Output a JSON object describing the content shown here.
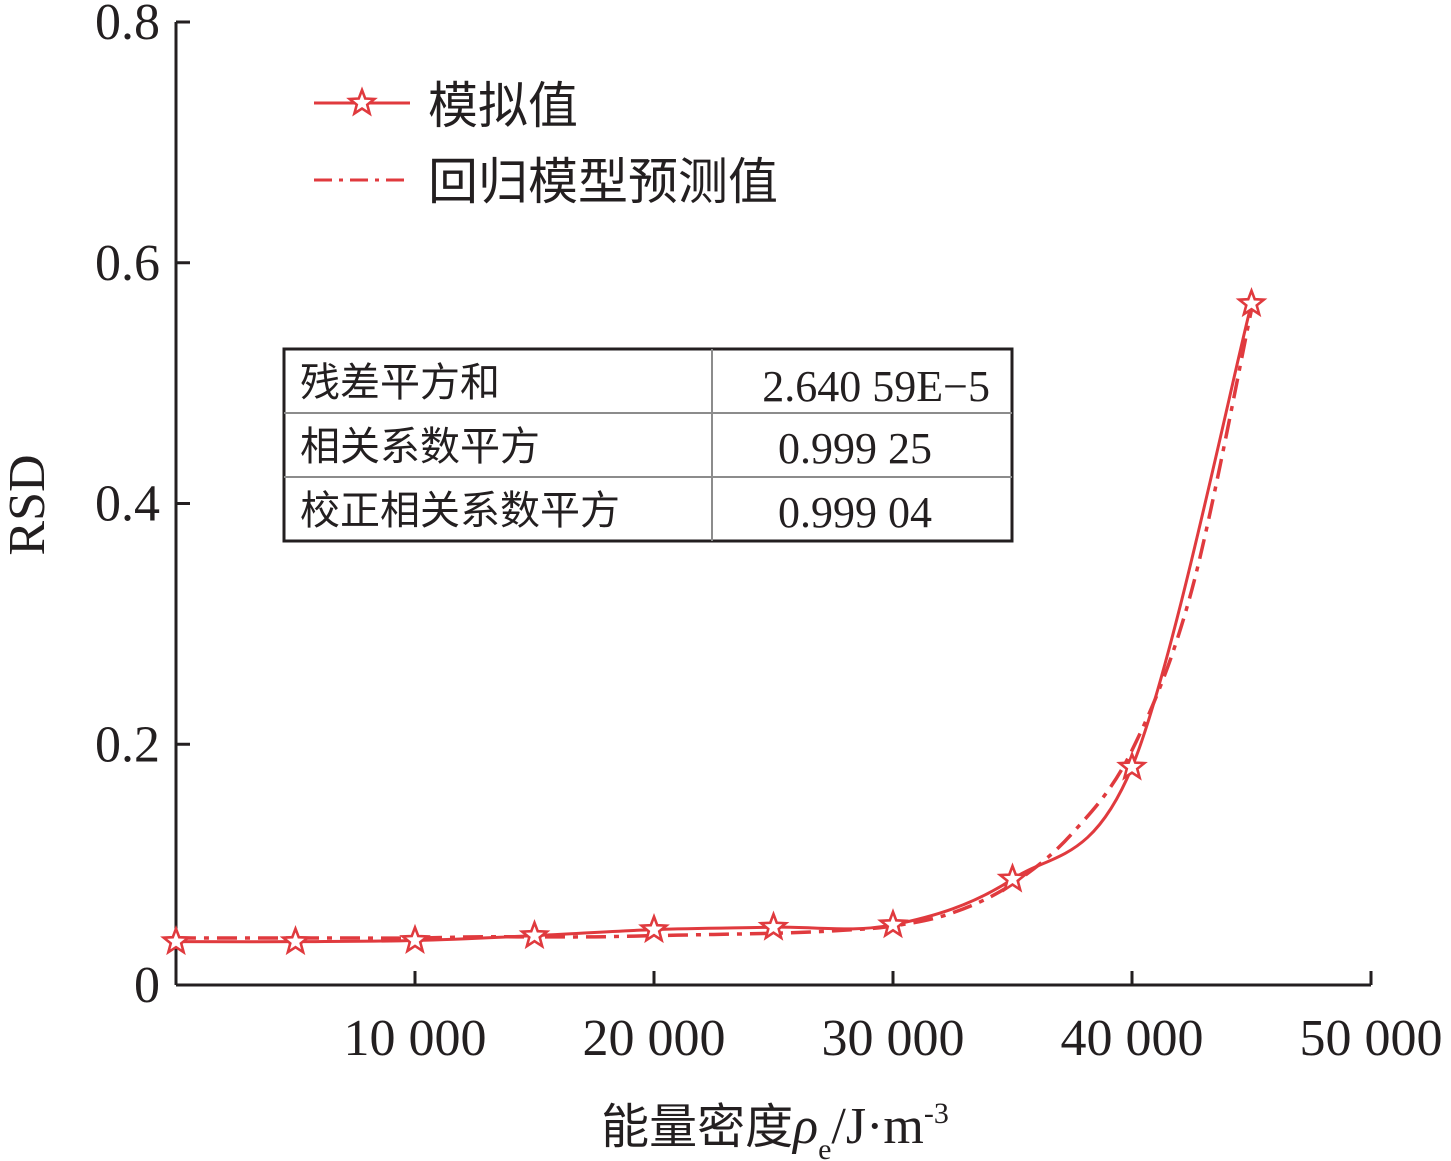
{
  "chart_data": {
    "type": "line",
    "xlabel_prefix": "能量密度",
    "xlabel_symbol": "ρ",
    "xlabel_subscript": "e",
    "xlabel_unit": "/J·m",
    "xlabel_exponent": "-3",
    "ylabel": "RSD",
    "xlim": [
      0,
      50000
    ],
    "ylim": [
      0,
      0.8
    ],
    "x_ticks": [
      10000,
      20000,
      30000,
      40000,
      50000
    ],
    "x_tick_labels": [
      "10 000",
      "20 000",
      "30 000",
      "40 000",
      "50 000"
    ],
    "y_ticks": [
      0,
      0.2,
      0.4,
      0.6,
      0.8
    ],
    "y_tick_labels": [
      "0",
      "0.2",
      "0.4",
      "0.6",
      "0.8"
    ],
    "grid": false,
    "legend_position": "top-left",
    "series": [
      {
        "name": "模拟值",
        "style": "solid-star",
        "color": "#e03a3e",
        "x": [
          0,
          5000,
          10000,
          15000,
          20000,
          25000,
          30000,
          35000,
          40000,
          45000
        ],
        "y": [
          0.036,
          0.036,
          0.037,
          0.041,
          0.046,
          0.048,
          0.05,
          0.088,
          0.181,
          0.566
        ]
      },
      {
        "name": "回归模型预测值",
        "style": "dashdot",
        "color": "#e03a3e",
        "x": [
          0,
          2500,
          5000,
          7500,
          10000,
          12500,
          15000,
          17500,
          20000,
          22500,
          25000,
          27500,
          30000,
          32500,
          35000,
          37500,
          40000,
          42500,
          45000
        ],
        "y": [
          0.039,
          0.039,
          0.039,
          0.039,
          0.039,
          0.04,
          0.04,
          0.04,
          0.041,
          0.042,
          0.043,
          0.045,
          0.049,
          0.06,
          0.084,
          0.126,
          0.195,
          0.328,
          0.561
        ]
      }
    ],
    "stats_table": [
      {
        "label": "残差平方和",
        "value": "2.640 59E−5"
      },
      {
        "label": "相关系数平方",
        "value": "0.999 25"
      },
      {
        "label": "校正相关系数平方",
        "value": "0.999 04"
      }
    ]
  }
}
